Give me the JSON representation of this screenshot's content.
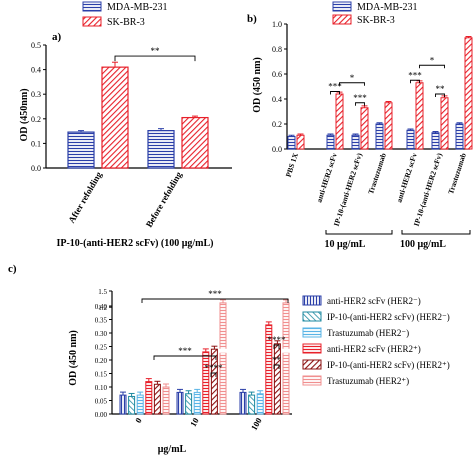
{
  "colors": {
    "blue": "#2b3fa8",
    "red": "#e8202a",
    "teal": "#1e8aa0",
    "lightblue": "#5ab4e6",
    "darkred": "#8b1010",
    "pink": "#f08f8f",
    "axis": "#000000",
    "sig": "#000000"
  },
  "chart_data": [
    {
      "type": "bar",
      "panel_label": "a)",
      "ylabel": "OD (450nm)",
      "xlabel": "IP-10-(anti-HER2 scFv) (100 μg/mL)",
      "ylim": [
        0,
        0.5
      ],
      "yticks": [
        "0.0",
        "0.1",
        "0.2",
        "0.3",
        "0.4",
        "0.5"
      ],
      "categories": [
        "After refolding",
        "Before refolding"
      ],
      "series": [
        {
          "name": "MDA-MB-231",
          "values": [
            0.146,
            0.152
          ],
          "errors": [
            0.006,
            0.008
          ],
          "color_key": "blue",
          "pattern": "hlines"
        },
        {
          "name": "SK-BR-3",
          "values": [
            0.41,
            0.205
          ],
          "errors": [
            0.02,
            0.006
          ],
          "color_key": "red",
          "pattern": "diag"
        }
      ],
      "legend": [
        "MDA-MB-231",
        "SK-BR-3"
      ],
      "significance": [
        {
          "label": "**",
          "from": [
            0,
            1
          ],
          "to": [
            1,
            1
          ],
          "y": 0.45
        }
      ]
    },
    {
      "type": "bar",
      "panel_label": "b)",
      "ylabel": "OD (450 nm)",
      "ylim": [
        0,
        1.0
      ],
      "yticks": [
        "0.0",
        "0.2",
        "0.4",
        "0.6",
        "0.8",
        "1.0"
      ],
      "categories": [
        "PBS 1X",
        "anti-HER2 scFv",
        "IP-10-(anti-HER2 scFv)",
        "Trastuzumab",
        "anti-HER2 scFv",
        "IP-10-(anti-HER2 scFv)",
        "Trastuzumab"
      ],
      "groups": [
        {
          "label": "10 μg/mL",
          "from": 1,
          "to": 3
        },
        {
          "label": "100 μg/mL",
          "from": 4,
          "to": 6
        }
      ],
      "series": [
        {
          "name": "MDA-MB-231",
          "values": [
            0.1,
            0.11,
            0.11,
            0.2,
            0.15,
            0.13,
            0.2
          ],
          "errors": [
            0.01,
            0.01,
            0.01,
            0.01,
            0.01,
            0.01,
            0.01
          ],
          "color_key": "blue",
          "pattern": "hlines"
        },
        {
          "name": "SK-BR-3",
          "values": [
            0.11,
            0.44,
            0.33,
            0.37,
            0.53,
            0.41,
            0.89
          ],
          "errors": [
            0.01,
            0.015,
            0.015,
            0.01,
            0.015,
            0.015,
            0.01
          ],
          "color_key": "red",
          "pattern": "diag"
        }
      ],
      "legend": [
        "MDA-MB-231",
        "SK-BR-3"
      ],
      "significance": [
        {
          "label": "***",
          "y": 0.46,
          "x1": [
            1,
            0
          ],
          "x2": [
            1,
            1
          ]
        },
        {
          "label": "*",
          "y": 0.53,
          "x1": [
            1,
            1
          ],
          "x2": [
            2,
            1
          ]
        },
        {
          "label": "***",
          "y": 0.37,
          "x1": [
            2,
            0
          ],
          "x2": [
            2,
            1
          ]
        },
        {
          "label": "***",
          "y": 0.55,
          "x1": [
            4,
            0
          ],
          "x2": [
            4,
            1
          ]
        },
        {
          "label": "*",
          "y": 0.67,
          "x1": [
            4,
            1
          ],
          "x2": [
            5,
            1
          ]
        },
        {
          "label": "**",
          "y": 0.44,
          "x1": [
            5,
            0
          ],
          "x2": [
            5,
            1
          ]
        }
      ]
    },
    {
      "type": "bar",
      "panel_label": "c)",
      "ylabel": "OD (450 nm)",
      "xlabel": "μg/mL",
      "ylim": [
        0,
        1.5
      ],
      "yticks": [
        "0.00",
        "0.05",
        "0.10",
        "0.15",
        "0.20",
        "0.25",
        "0.30",
        "0.35",
        "0.40",
        "1.2",
        "1.5"
      ],
      "categories": [
        "0",
        "10",
        "100"
      ],
      "series": [
        {
          "name": "anti-HER2 scFv (HER2⁻)",
          "values": [
            0.07,
            0.08,
            0.08
          ],
          "errors": [
            0.005,
            0.005,
            0.005
          ],
          "color_key": "blue",
          "pattern": "vlines"
        },
        {
          "name": "IP-10-(anti-HER2 scFv) (HER2⁻)",
          "values": [
            0.065,
            0.075,
            0.07
          ],
          "errors": [
            0.005,
            0.005,
            0.005
          ],
          "color_key": "teal",
          "pattern": "diag"
        },
        {
          "name": "Trastuzumab (HER2⁻)",
          "values": [
            0.07,
            0.08,
            0.075
          ],
          "errors": [
            0.005,
            0.005,
            0.005
          ],
          "color_key": "lightblue",
          "pattern": "hlines"
        },
        {
          "name": "anti-HER2 scFv (HER2⁺)",
          "values": [
            0.12,
            0.23,
            0.33
          ],
          "errors": [
            0.02,
            0.03,
            0.02
          ],
          "color_key": "red",
          "pattern": "hlines"
        },
        {
          "name": "IP-10-(anti-HER2 scFv) (HER2⁺)",
          "values": [
            0.11,
            0.24,
            0.26
          ],
          "errors": [
            0.02,
            0.03,
            0.02
          ],
          "color_key": "darkred",
          "pattern": "diag"
        },
        {
          "name": "Trastuzumab (HER2⁺)",
          "values": [
            0.1,
            1.28,
            1.28
          ],
          "errors": [
            0.01,
            0.01,
            0.01
          ],
          "color_key": "pink",
          "pattern": "hlines"
        }
      ],
      "legend": [
        "anti-HER2 scFv (HER2⁻)",
        "IP-10-(anti-HER2 scFv) (HER2⁻)",
        "Trastuzumab (HER2⁻)",
        "anti-HER2 scFv (HER2⁺)",
        "IP-10-(anti-HER2 scFv) (HER2⁺)",
        "Trastuzumab (HER2⁺)"
      ],
      "significance": [
        {
          "label": "***",
          "note": "0 vs 100 Trastuzumab HER2+"
        },
        {
          "label": "***",
          "note": "0 vs 10 IP-10 HER2+"
        },
        {
          "label": "****",
          "note": "10 group"
        },
        {
          "label": "****",
          "note": "100 group upper"
        },
        {
          "label": "**",
          "note": "100 group lower"
        }
      ]
    }
  ],
  "labels": {
    "a_x1": "After refolding",
    "a_x2": "Before refolding",
    "b_x": [
      "PBS 1X",
      "anti-HER2 scFv",
      "IP-10-(anti-HER2 scFv)",
      "Trastuzumab",
      "anti-HER2 scFv",
      "IP-10-(anti-HER2 scFv)",
      "Trastuzumab"
    ]
  }
}
